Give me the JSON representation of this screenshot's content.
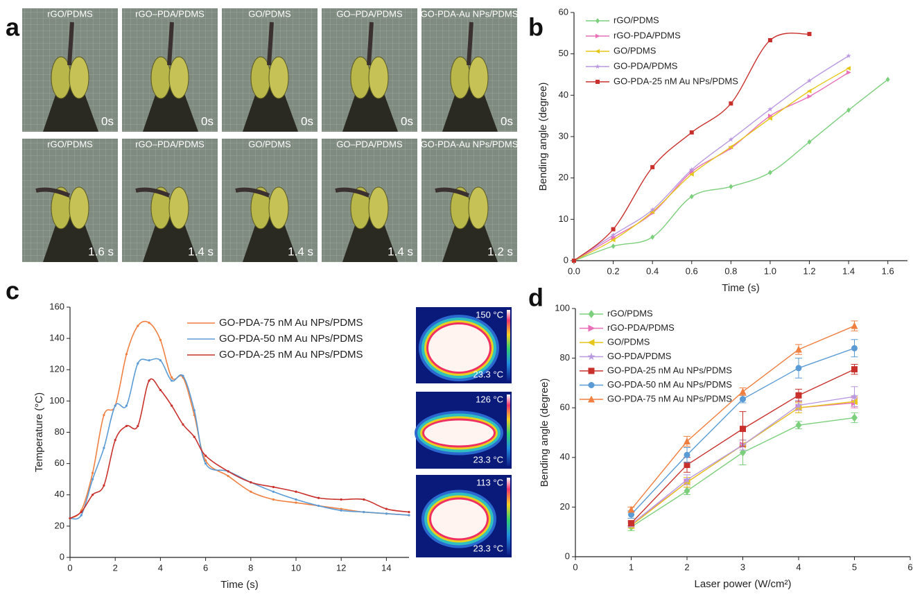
{
  "panel_labels": [
    "a",
    "b",
    "c",
    "d"
  ],
  "photos": {
    "samples": [
      "rGO/PDMS",
      "rGO–PDA/PDMS",
      "GO/PDMS",
      "GO–PDA/PDMS",
      "GO-PDA-Au NPs/PDMS"
    ],
    "times_top": [
      "0s",
      "0s",
      "0s",
      "0s",
      "0s"
    ],
    "times_bottom": [
      "1.6 s",
      "1.4 s",
      "1.4 s",
      "1.4 s",
      "1.2 s"
    ]
  },
  "thermal": [
    {
      "max": "150 °C",
      "min": "23.3 °C"
    },
    {
      "max": "126 °C",
      "min": "23.3 °C"
    },
    {
      "max": "113 °C",
      "min": "23.3 °C"
    }
  ],
  "chart_data": [
    {
      "type": "line",
      "smooth": true,
      "legend": "upper left",
      "x_label": "Time (s)",
      "y_label": "Bending angle (degree)",
      "xlim": [
        0,
        1.7
      ],
      "xticks": [
        {
          "value": 0,
          "label": "0.0"
        },
        0.2,
        0.4,
        0.6,
        0.8,
        {
          "value": 1,
          "label": "1.0"
        },
        1.2,
        1.4,
        1.6
      ],
      "ylim": [
        0,
        60
      ],
      "yticks": [
        0,
        10,
        20,
        30,
        40,
        50,
        60
      ],
      "series": [
        {
          "name": "rGO/PDMS",
          "color": "#7ccf7c",
          "marker": "diamond",
          "x": [
            0,
            0.2,
            0.4,
            0.6,
            0.8,
            1.0,
            1.2,
            1.4,
            1.6
          ],
          "values": [
            0,
            3.5,
            5.7,
            15.5,
            17.9,
            21.3,
            28.7,
            36.4,
            43.8
          ]
        },
        {
          "name": "rGO-PDA/PDMS",
          "color": "#e86fb8",
          "marker": "triangle-right",
          "x": [
            0,
            0.2,
            0.4,
            0.6,
            0.8,
            1.0,
            1.2,
            1.4
          ],
          "values": [
            0,
            5.6,
            11.5,
            21.5,
            27.2,
            35.0,
            39.7,
            45.5
          ]
        },
        {
          "name": "GO/PDMS",
          "color": "#e6c619",
          "marker": "triangle-left",
          "x": [
            0,
            0.2,
            0.4,
            0.6,
            0.8,
            1.0,
            1.2,
            1.4
          ],
          "values": [
            0,
            5.0,
            11.8,
            20.9,
            27.5,
            34.4,
            41.0,
            46.5
          ]
        },
        {
          "name": "GO-PDA/PDMS",
          "color": "#b999e0",
          "marker": "star",
          "x": [
            0,
            0.2,
            0.4,
            0.6,
            0.8,
            1.0,
            1.2,
            1.4
          ],
          "values": [
            0,
            6.2,
            12.3,
            22.0,
            29.3,
            36.6,
            43.5,
            49.5
          ]
        },
        {
          "name": "GO-PDA-25 nM Au NPs/PDMS",
          "color": "#c9302c",
          "marker": "square",
          "x": [
            0,
            0.2,
            0.4,
            0.6,
            0.8,
            1.0,
            1.2
          ],
          "values": [
            0,
            7.6,
            22.6,
            31.0,
            38.0,
            53.3,
            54.8
          ]
        }
      ]
    },
    {
      "type": "line",
      "smooth": true,
      "legend": "upper right",
      "x_label": "Time (s)",
      "y_label": "Temperature (°C)",
      "xlim": [
        0,
        15
      ],
      "xticks": [
        0,
        2,
        4,
        6,
        8,
        10,
        12,
        14
      ],
      "ylim": [
        0,
        160
      ],
      "yticks": [
        0,
        20,
        40,
        60,
        80,
        100,
        120,
        140,
        160
      ],
      "x": [
        0,
        0.5,
        1,
        1.5,
        2,
        2.5,
        3,
        3.5,
        4,
        4.5,
        5,
        5.5,
        6,
        7,
        8,
        9,
        10,
        11,
        12,
        13,
        14,
        15
      ],
      "series": [
        {
          "name": "GO-PDA-75 nM Au NPs/PDMS",
          "color": "#f07f40",
          "marker": "dot",
          "values": [
            25,
            30,
            54,
            91,
            97,
            130,
            148,
            150,
            139,
            115,
            115,
            91,
            62,
            52,
            42,
            37,
            35,
            33,
            31,
            29,
            28,
            27
          ]
        },
        {
          "name": "GO-PDA-50 nM Au NPs/PDMS",
          "color": "#5b9bd5",
          "marker": "dot",
          "values": [
            25,
            27,
            50,
            70,
            97,
            97,
            124,
            126,
            126,
            113,
            116,
            94,
            60,
            55,
            48,
            42,
            37,
            33,
            30,
            29,
            28,
            27
          ]
        },
        {
          "name": "GO-PDA-25 nM Au NPs/PDMS",
          "color": "#c9302c",
          "marker": "dot",
          "values": [
            25,
            29,
            40,
            46,
            75,
            84,
            84,
            113,
            107,
            97,
            85,
            77,
            65,
            55,
            48,
            45,
            42,
            38,
            37,
            37,
            31,
            29
          ]
        }
      ]
    },
    {
      "type": "line",
      "smooth": false,
      "legend": "upper left",
      "x_label": "Laser power (W/cm²)",
      "y_label": "Bending angle (degree)",
      "xlim": [
        0,
        6
      ],
      "xticks": [
        0,
        1,
        2,
        3,
        4,
        5,
        6
      ],
      "ylim": [
        0,
        100
      ],
      "yticks": [
        0,
        20,
        40,
        60,
        80,
        100
      ],
      "x": [
        1,
        2,
        3,
        4,
        5
      ],
      "series": [
        {
          "name": "rGO/PDMS",
          "color": "#7ccf7c",
          "marker": "diamond",
          "values": [
            12,
            26.5,
            42,
            53,
            56
          ],
          "errors": [
            1.5,
            1.5,
            5,
            1.5,
            2
          ]
        },
        {
          "name": "rGO-PDA/PDMS",
          "color": "#e86fb8",
          "marker": "triangle-right",
          "values": [
            13,
            30,
            45,
            60,
            62
          ],
          "errors": [
            1,
            2,
            2,
            2,
            2
          ]
        },
        {
          "name": "GO/PDMS",
          "color": "#e6c619",
          "marker": "triangle-left",
          "values": [
            12.5,
            30,
            45,
            60,
            62.5
          ],
          "errors": [
            1,
            2,
            2,
            2,
            2
          ]
        },
        {
          "name": "GO-PDA/PDMS",
          "color": "#b999e0",
          "marker": "star",
          "values": [
            13,
            31,
            45,
            61,
            64.5
          ],
          "errors": [
            1,
            2,
            2,
            2,
            4
          ]
        },
        {
          "name": "GO-PDA-25 nM Au NPs/PDMS",
          "color": "#c9302c",
          "marker": "square",
          "values": [
            13.5,
            37,
            51.5,
            65,
            75.5
          ],
          "errors": [
            1,
            3,
            7,
            2.5,
            2
          ]
        },
        {
          "name": "GO-PDA-50 nM Au NPs/PDMS",
          "color": "#5b9bd5",
          "marker": "circle",
          "values": [
            17,
            41,
            63.5,
            76,
            84
          ],
          "errors": [
            1.5,
            3,
            1.5,
            4,
            3.5
          ]
        },
        {
          "name": "GO-PDA-75 nM Au NPs/PDMS",
          "color": "#f07f40",
          "marker": "triangle-up",
          "values": [
            19,
            46.5,
            66.5,
            83.5,
            93
          ],
          "errors": [
            1,
            2,
            1.5,
            2,
            2
          ]
        }
      ]
    }
  ]
}
